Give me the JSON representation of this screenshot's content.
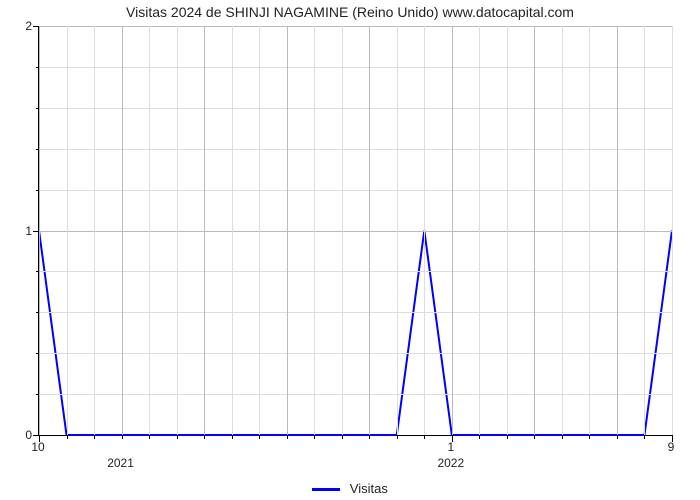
{
  "chart": {
    "type": "line",
    "title": "Visitas 2024 de SHINJI NAGAMINE (Reino Unido) www.datocapital.com",
    "title_fontsize": 14,
    "background_color": "#ffffff",
    "grid_color_minor": "#dddddd",
    "grid_color_major": "#bbbbbb",
    "axis_color": "#000000",
    "label_fontsize": 12,
    "series": {
      "label": "Visitas",
      "color": "#0000ff",
      "line_width": 2,
      "x": [
        0,
        1,
        2,
        3,
        4,
        5,
        6,
        7,
        8,
        9,
        10,
        11,
        12,
        13,
        14,
        15,
        16,
        17,
        18,
        19,
        20,
        21,
        22,
        23
      ],
      "y": [
        1,
        0,
        0,
        0,
        0,
        0,
        0,
        0,
        0,
        0,
        0,
        0,
        0,
        0,
        1,
        0,
        0,
        0,
        0,
        0,
        0,
        0,
        0,
        1
      ]
    },
    "x_axis": {
      "min": 0,
      "max": 23,
      "major_ticks": [
        {
          "pos": 0,
          "label": "10"
        },
        {
          "pos": 15,
          "label": "1"
        },
        {
          "pos": 23,
          "label": "9"
        }
      ],
      "group_labels": [
        {
          "pos": 3,
          "label": "2021"
        },
        {
          "pos": 15,
          "label": "2022"
        }
      ],
      "minor_ticks": [
        1,
        2,
        3,
        4,
        5,
        6,
        7,
        8,
        9,
        10,
        11,
        12,
        13,
        14,
        16,
        17,
        18,
        19,
        20,
        21,
        22
      ],
      "grid_major": [
        0,
        3,
        6,
        9,
        12,
        15,
        18,
        21
      ],
      "grid_minor": [
        1,
        2,
        4,
        5,
        7,
        8,
        10,
        11,
        13,
        14,
        16,
        17,
        19,
        20,
        22,
        23
      ]
    },
    "y_axis": {
      "min": 0,
      "max": 2,
      "major_ticks": [
        0,
        1,
        2
      ],
      "minor_ticks": [
        0.2,
        0.4,
        0.6,
        0.8,
        1.2,
        1.4,
        1.6,
        1.8
      ],
      "grid_major": [
        1,
        2
      ],
      "grid_minor": [
        0.2,
        0.4,
        0.6,
        0.8,
        1.2,
        1.4,
        1.6,
        1.8
      ]
    },
    "legend_position": "bottom-center"
  }
}
